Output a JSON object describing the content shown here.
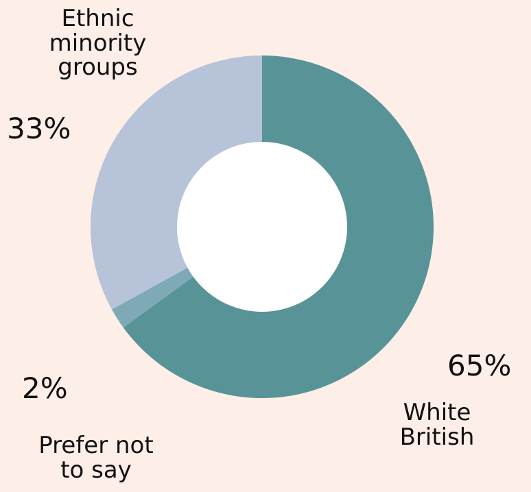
{
  "chart_data": {
    "type": "pie",
    "title": "",
    "slices": [
      {
        "label": "White\nBritish",
        "value": 65,
        "display": "65%",
        "color": "#589398"
      },
      {
        "label": "Prefer not\nto say",
        "value": 2,
        "display": "2%",
        "color": "#7ea9b7"
      },
      {
        "label": "Ethnic\nminority\ngroups",
        "value": 33,
        "display": "33%",
        "color": "#b6c3d8"
      }
    ],
    "center_color": "#ffffff",
    "background": "#fdeee7"
  }
}
